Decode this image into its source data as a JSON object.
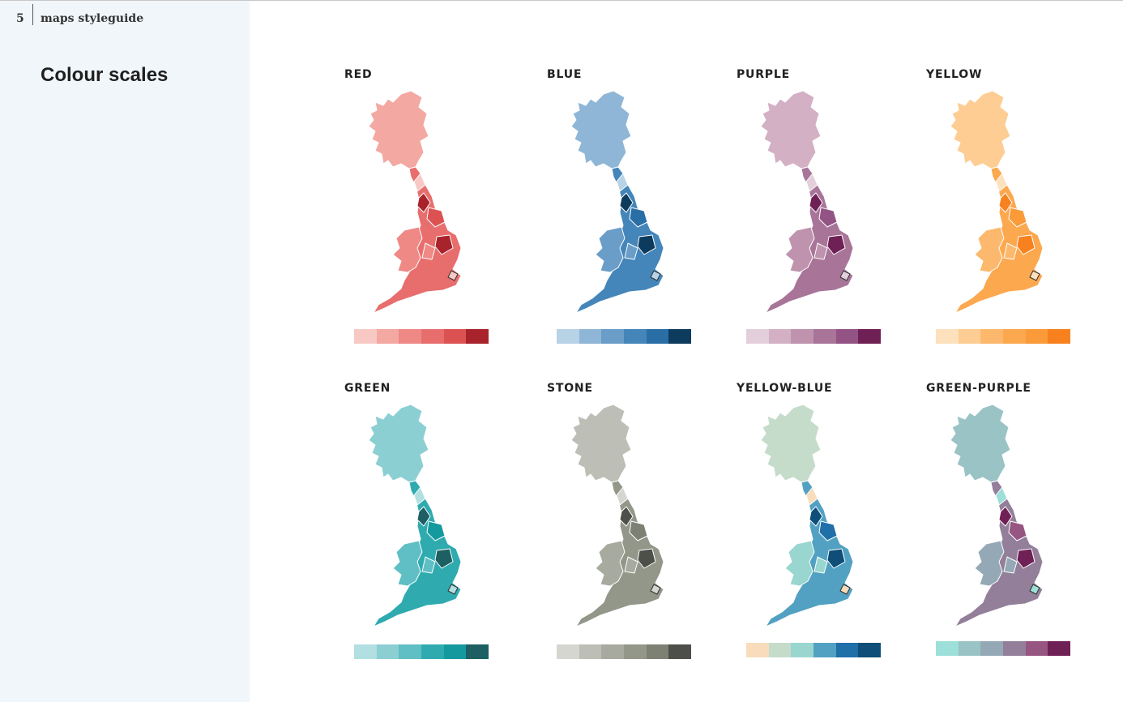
{
  "header": {
    "page_number": "5",
    "doc_title": "maps styleguide"
  },
  "section": {
    "title": "Colour scales"
  },
  "scales": [
    {
      "name": "RED",
      "colors": [
        "#f8c9c4",
        "#f3a8a2",
        "#ee8986",
        "#e86e6e",
        "#dc5252",
        "#a8232b"
      ]
    },
    {
      "name": "BLUE",
      "colors": [
        "#b8d2e6",
        "#8fb6d6",
        "#6a9dc8",
        "#4486ba",
        "#2a6ea6",
        "#0d3b5e"
      ]
    },
    {
      "name": "PURPLE",
      "colors": [
        "#e3cfdb",
        "#d3b0c4",
        "#bf93ae",
        "#a87599",
        "#935485",
        "#6f2054"
      ]
    },
    {
      "name": "YELLOW",
      "colors": [
        "#fde1bc",
        "#fdcd93",
        "#fcb96d",
        "#fba84f",
        "#fa9a39",
        "#f7811f"
      ]
    },
    {
      "name": "GREEN",
      "colors": [
        "#b2dfe2",
        "#8ccfd3",
        "#5fbfc4",
        "#2fabb0",
        "#14999e",
        "#1d5f62"
      ]
    },
    {
      "name": "STONE",
      "colors": [
        "#d6d6d0",
        "#bdbeb6",
        "#a7aa9f",
        "#92978a",
        "#7c8174",
        "#4d504a"
      ]
    },
    {
      "name": "YELLOW-BLUE",
      "colors": [
        "#f8dcbb",
        "#c5dccb",
        "#9ad6d0",
        "#52a1c2",
        "#1f6fa8",
        "#0e4e78"
      ]
    },
    {
      "name": "GREEN-PURPLE",
      "colors": [
        "#9ddfd9",
        "#9ac3c5",
        "#94a9b5",
        "#937f99",
        "#975582",
        "#6f2054"
      ]
    }
  ]
}
